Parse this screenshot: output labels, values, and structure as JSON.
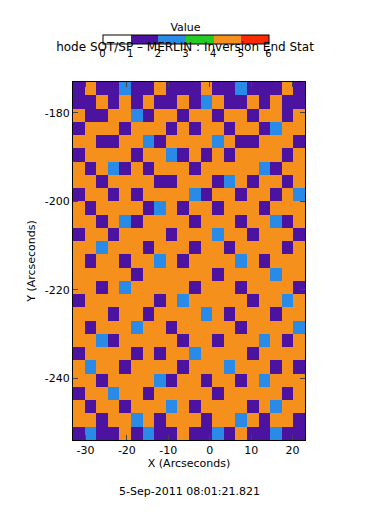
{
  "chart_data": {
    "type": "heatmap",
    "title": "hode SOT/SP – MERLIN : Inversion End Stat",
    "xlabel": "X (Arcseconds)",
    "ylabel": "Y (Arcseconds)",
    "annotation": "5-Sep-2011 08:01:21.821",
    "xlim": [
      -33,
      23
    ],
    "ylim": [
      -254,
      -173
    ],
    "xticks": [
      -30,
      -20,
      -10,
      0,
      10,
      20
    ],
    "yticks": [
      -240,
      -220,
      -200,
      -180
    ],
    "x": [
      -31.6,
      -28.8,
      -26.0,
      -23.2,
      -20.4,
      -17.6,
      -14.8,
      -12.0,
      -9.2,
      -6.4,
      -3.6,
      -0.8,
      2.0,
      4.8,
      7.6,
      10.4,
      13.2,
      16.0,
      18.8,
      21.6
    ],
    "y": [
      -252.5,
      -249.5,
      -246.5,
      -243.5,
      -240.5,
      -237.5,
      -234.5,
      -231.5,
      -228.5,
      -225.5,
      -222.5,
      -219.5,
      -216.5,
      -213.5,
      -210.5,
      -207.5,
      -204.5,
      -201.5,
      -198.5,
      -195.5,
      -192.5,
      -189.5,
      -186.5,
      -183.5,
      -180.5,
      -177.5,
      -174.5
    ],
    "cells": [
      [
        1,
        2,
        1,
        1,
        4,
        1,
        2,
        1,
        1,
        4,
        1,
        1,
        2,
        1,
        4,
        1,
        1,
        2,
        1,
        1
      ],
      [
        4,
        4,
        1,
        4,
        4,
        2,
        4,
        1,
        4,
        4,
        4,
        1,
        4,
        4,
        2,
        4,
        1,
        4,
        4,
        1
      ],
      [
        4,
        1,
        4,
        4,
        1,
        4,
        4,
        4,
        2,
        4,
        1,
        4,
        4,
        4,
        4,
        1,
        4,
        2,
        4,
        4
      ],
      [
        1,
        4,
        4,
        2,
        4,
        4,
        1,
        4,
        4,
        4,
        4,
        4,
        1,
        4,
        4,
        4,
        4,
        4,
        1,
        4
      ],
      [
        4,
        4,
        1,
        4,
        4,
        4,
        4,
        2,
        1,
        4,
        4,
        1,
        4,
        4,
        1,
        4,
        2,
        4,
        4,
        4
      ],
      [
        4,
        2,
        4,
        4,
        1,
        4,
        4,
        4,
        4,
        1,
        4,
        4,
        4,
        2,
        4,
        4,
        4,
        1,
        4,
        1
      ],
      [
        1,
        4,
        4,
        4,
        4,
        1,
        4,
        1,
        4,
        4,
        2,
        4,
        4,
        4,
        4,
        1,
        4,
        4,
        4,
        4
      ],
      [
        4,
        4,
        2,
        1,
        4,
        4,
        4,
        4,
        4,
        1,
        4,
        4,
        1,
        4,
        4,
        4,
        2,
        4,
        1,
        4
      ],
      [
        4,
        1,
        4,
        4,
        4,
        2,
        4,
        4,
        1,
        4,
        4,
        4,
        4,
        4,
        1,
        4,
        4,
        4,
        4,
        2
      ],
      [
        4,
        4,
        4,
        1,
        4,
        4,
        1,
        4,
        4,
        4,
        4,
        2,
        4,
        1,
        4,
        4,
        4,
        1,
        4,
        4
      ],
      [
        1,
        4,
        4,
        4,
        4,
        4,
        4,
        1,
        4,
        2,
        4,
        4,
        4,
        4,
        4,
        1,
        4,
        4,
        2,
        4
      ],
      [
        4,
        4,
        1,
        4,
        2,
        4,
        4,
        4,
        4,
        4,
        1,
        4,
        4,
        4,
        1,
        4,
        4,
        4,
        4,
        1
      ],
      [
        4,
        4,
        4,
        4,
        4,
        1,
        4,
        4,
        4,
        4,
        4,
        4,
        1,
        4,
        4,
        4,
        4,
        2,
        4,
        4
      ],
      [
        4,
        1,
        4,
        4,
        1,
        4,
        4,
        2,
        4,
        1,
        4,
        4,
        4,
        4,
        2,
        4,
        1,
        4,
        4,
        4
      ],
      [
        4,
        4,
        2,
        4,
        4,
        4,
        1,
        4,
        4,
        4,
        1,
        4,
        4,
        1,
        4,
        4,
        4,
        4,
        1,
        4
      ],
      [
        1,
        4,
        4,
        1,
        4,
        4,
        4,
        4,
        1,
        4,
        4,
        4,
        2,
        4,
        4,
        1,
        4,
        4,
        4,
        1
      ],
      [
        4,
        4,
        1,
        4,
        2,
        1,
        4,
        4,
        4,
        4,
        1,
        4,
        4,
        4,
        1,
        4,
        4,
        2,
        1,
        4
      ],
      [
        4,
        1,
        4,
        4,
        4,
        4,
        1,
        2,
        4,
        1,
        4,
        4,
        1,
        4,
        4,
        4,
        1,
        4,
        4,
        4
      ],
      [
        1,
        4,
        4,
        1,
        4,
        1,
        4,
        4,
        4,
        4,
        2,
        1,
        4,
        4,
        1,
        4,
        4,
        1,
        4,
        2
      ],
      [
        4,
        4,
        1,
        4,
        4,
        4,
        4,
        1,
        1,
        4,
        4,
        4,
        1,
        2,
        4,
        1,
        4,
        4,
        1,
        4
      ],
      [
        4,
        1,
        4,
        2,
        1,
        4,
        1,
        4,
        4,
        4,
        1,
        4,
        4,
        4,
        4,
        4,
        2,
        1,
        4,
        4
      ],
      [
        1,
        4,
        4,
        4,
        4,
        1,
        4,
        4,
        2,
        1,
        4,
        1,
        4,
        1,
        4,
        4,
        4,
        4,
        1,
        4
      ],
      [
        4,
        4,
        1,
        1,
        4,
        4,
        2,
        1,
        4,
        4,
        4,
        4,
        2,
        4,
        1,
        1,
        4,
        4,
        4,
        1
      ],
      [
        1,
        4,
        4,
        4,
        1,
        4,
        4,
        4,
        1,
        4,
        1,
        4,
        4,
        1,
        4,
        4,
        1,
        2,
        4,
        4
      ],
      [
        4,
        1,
        1,
        4,
        4,
        2,
        1,
        4,
        4,
        1,
        4,
        4,
        1,
        4,
        4,
        1,
        4,
        4,
        1,
        4
      ],
      [
        1,
        1,
        4,
        1,
        4,
        1,
        4,
        1,
        1,
        4,
        1,
        2,
        4,
        1,
        1,
        4,
        1,
        4,
        1,
        1
      ],
      [
        1,
        4,
        1,
        1,
        2,
        1,
        1,
        4,
        1,
        1,
        1,
        4,
        1,
        1,
        2,
        1,
        1,
        1,
        4,
        1
      ]
    ],
    "colorbar": {
      "title": "Value",
      "range": [
        0,
        6
      ],
      "ticks": [
        0,
        1,
        2,
        3,
        4,
        5,
        6
      ],
      "colors": [
        "#ffffff",
        "#4c12a0",
        "#2a8ae8",
        "#22cc22",
        "#f5901c",
        "#ff2a00"
      ]
    }
  }
}
